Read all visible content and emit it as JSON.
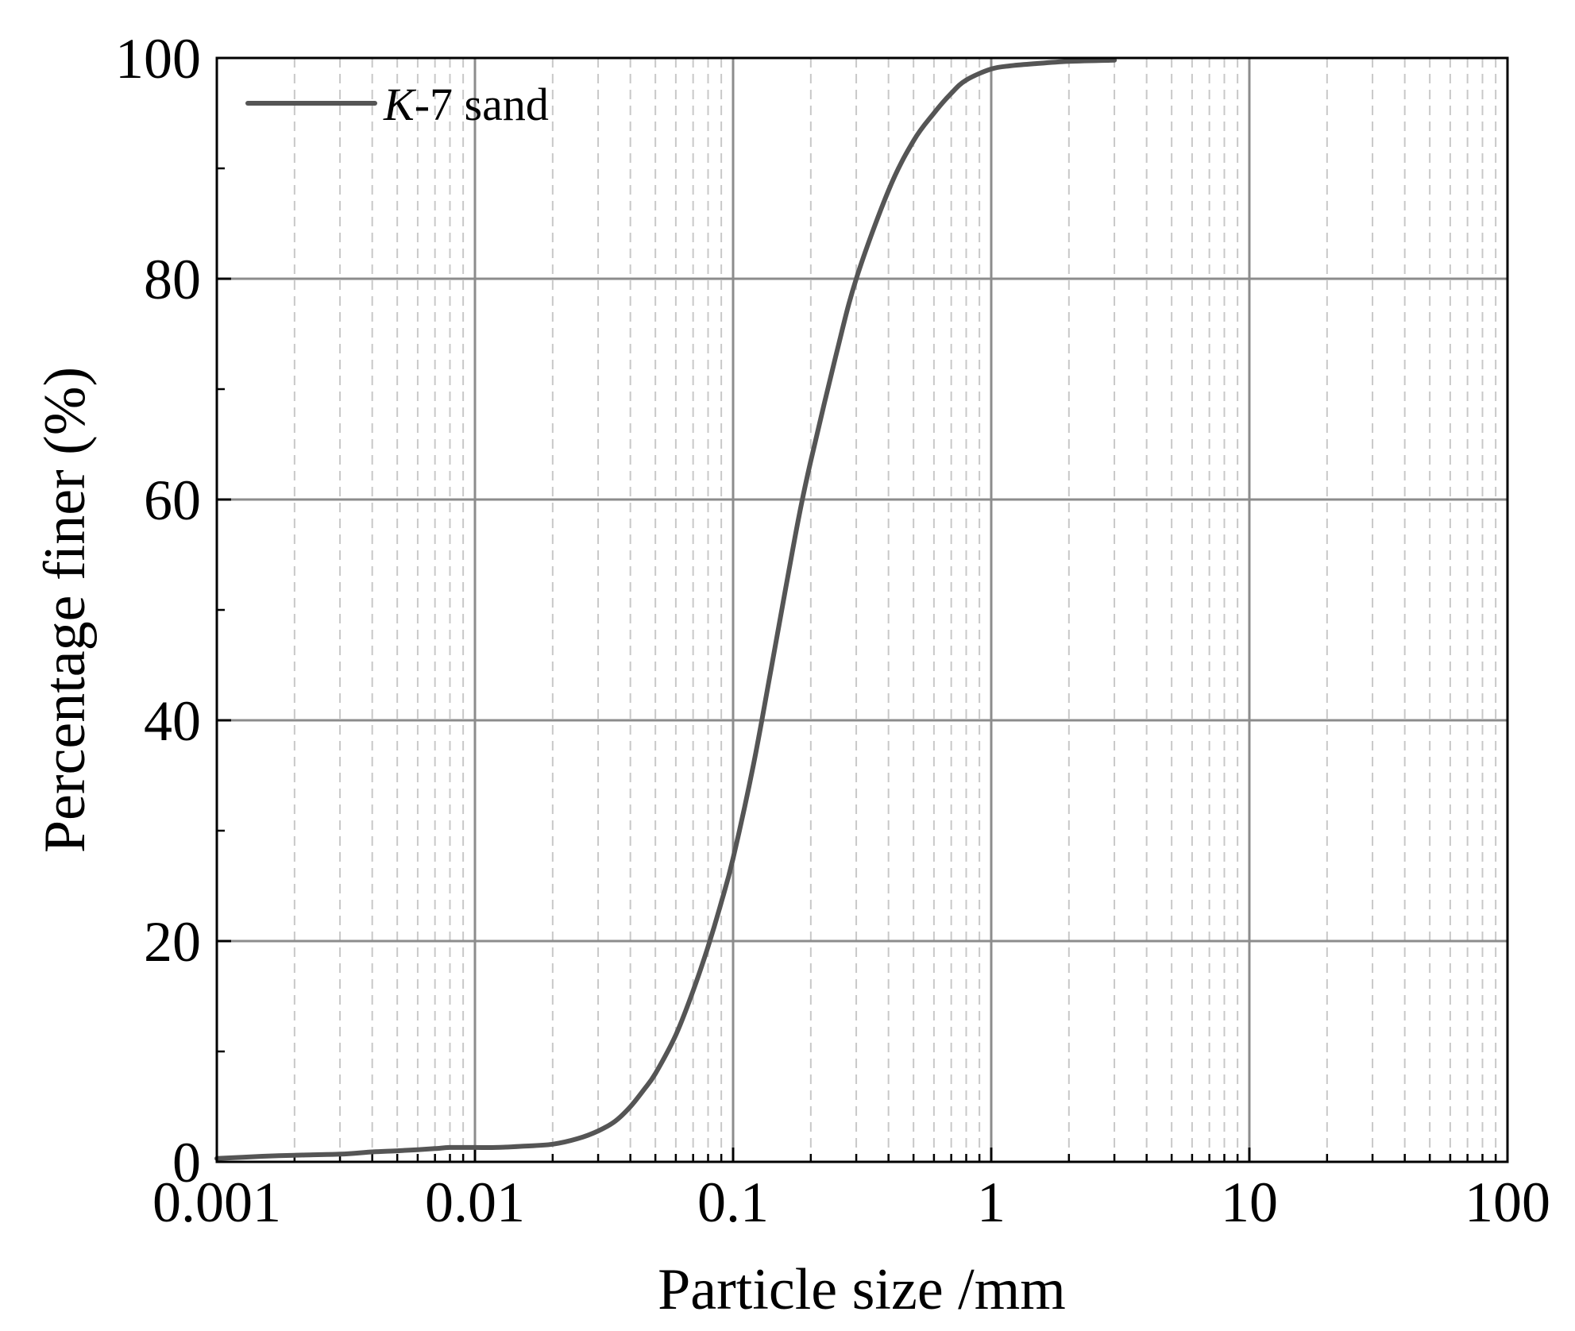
{
  "chart_data": {
    "type": "line",
    "xlabel": "Particle size /mm",
    "ylabel": "Percentage finer (%)",
    "xscale": "log",
    "xlim": [
      0.001,
      100
    ],
    "ylim": [
      0,
      100
    ],
    "grid": true,
    "legend_position": "top-left",
    "x_tick_labels": [
      "0.001",
      "0.01",
      "0.1",
      "1",
      "10",
      "100"
    ],
    "y_tick_labels": [
      "0",
      "20",
      "40",
      "60",
      "80",
      "100"
    ],
    "legend": {
      "italic": "K",
      "rest": "-7 sand"
    },
    "line_color": "#555555",
    "series": [
      {
        "name": "K-7 sand",
        "x": [
          0.001,
          0.0015,
          0.002,
          0.003,
          0.004,
          0.005,
          0.006,
          0.007,
          0.008,
          0.01,
          0.012,
          0.015,
          0.02,
          0.025,
          0.03,
          0.035,
          0.04,
          0.045,
          0.05,
          0.06,
          0.07,
          0.08,
          0.09,
          0.1,
          0.12,
          0.14,
          0.16,
          0.18,
          0.2,
          0.25,
          0.3,
          0.4,
          0.5,
          0.6,
          0.7,
          0.8,
          1.0,
          1.2,
          1.5,
          2.0,
          3.0
        ],
        "y": [
          0.3,
          0.5,
          0.6,
          0.7,
          0.9,
          1.0,
          1.1,
          1.2,
          1.3,
          1.3,
          1.3,
          1.4,
          1.6,
          2.1,
          2.8,
          3.7,
          5.0,
          6.5,
          8.0,
          11.5,
          15.5,
          19.5,
          23.5,
          27.5,
          36.0,
          44.5,
          52.0,
          58.5,
          63.5,
          73.0,
          80.0,
          88.0,
          92.5,
          95.0,
          96.8,
          98.0,
          99.0,
          99.3,
          99.5,
          99.7,
          99.8
        ]
      }
    ]
  }
}
